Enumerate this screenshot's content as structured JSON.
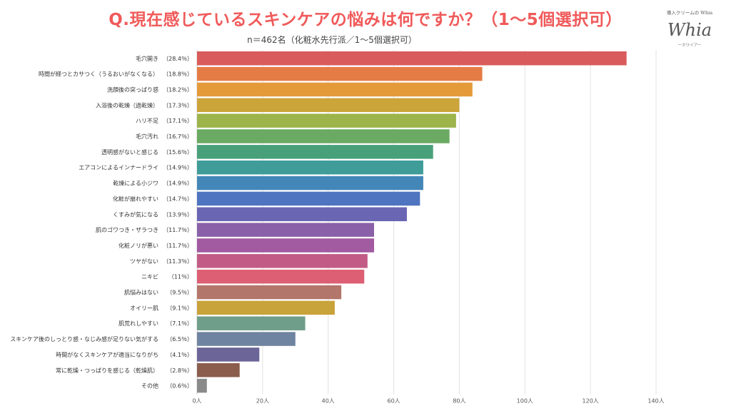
{
  "header": {
    "title": "Q.現在感じているスキンケアの悩みは何ですか？（1〜5個選択可）",
    "subtitle": "n＝462名（化粧水先行派／1〜5個選択可）"
  },
  "logo": {
    "top_text": "導入クリームの Whia",
    "script_text": "Whia",
    "bottom_text": "ーホワイアー"
  },
  "chart_data": {
    "type": "bar",
    "orientation": "horizontal",
    "categories": [
      "毛穴開き",
      "時間が経つとカサつく（うるおいがなくなる）",
      "洗顔後の突っぱり感",
      "入浴後の乾燥（過乾燥）",
      "ハリ不足",
      "毛穴汚れ",
      "透明感がないと感じる",
      "エアコンによるインナードライ",
      "乾燥による小ジワ",
      "化粧が崩れやすい",
      "くすみが気になる",
      "肌のゴワつき・ザラつき",
      "化粧ノリが悪い",
      "ツヤがない",
      "ニキビ",
      "肌悩みはない",
      "オイリー肌",
      "肌荒れしやすい",
      "スキンケア後のしっとり感・なじみ感が足りない気がする",
      "時間がなくスキンケアが適当になりがち",
      "常に乾燥・つっぱりを感じる（乾燥肌）",
      "その他"
    ],
    "percent_labels": [
      "（28.4％）",
      "（18.8％）",
      "（18.2％）",
      "（17.3％）",
      "（17.1％）",
      "（16.7％）",
      "（15.6％）",
      "（14.9％）",
      "（14.9％）",
      "（14.7％）",
      "（13.9％）",
      "（11.7％）",
      "（11.7％）",
      "（11.3％）",
      "（11％）",
      "（9.5％）",
      "（9.1％）",
      "（7.1％）",
      "（6.5％）",
      "（4.1％）",
      "（2.8％）",
      "（0.6％）"
    ],
    "values": [
      131,
      87,
      84,
      80,
      79,
      77,
      72,
      69,
      69,
      68,
      64,
      54,
      54,
      52,
      51,
      44,
      42,
      33,
      30,
      19,
      13,
      3
    ],
    "colors": [
      "#d95b5b",
      "#e57b45",
      "#e59a3a",
      "#cba43a",
      "#9db44a",
      "#6aaa62",
      "#48a07a",
      "#3f9c99",
      "#4387b8",
      "#4f74c0",
      "#6a66b4",
      "#8a60a8",
      "#a25aa0",
      "#c25c86",
      "#dd5f73",
      "#b3766a",
      "#c8a23a",
      "#6f9e8a",
      "#6f84a0",
      "#6c6598",
      "#8a5d4c",
      "#8a8a8a"
    ],
    "x_ticks": [
      "0人",
      "20人",
      "40人",
      "60人",
      "80人",
      "100人",
      "120人",
      "140人"
    ],
    "xlim": [
      0,
      140
    ],
    "grid": "vertical"
  }
}
